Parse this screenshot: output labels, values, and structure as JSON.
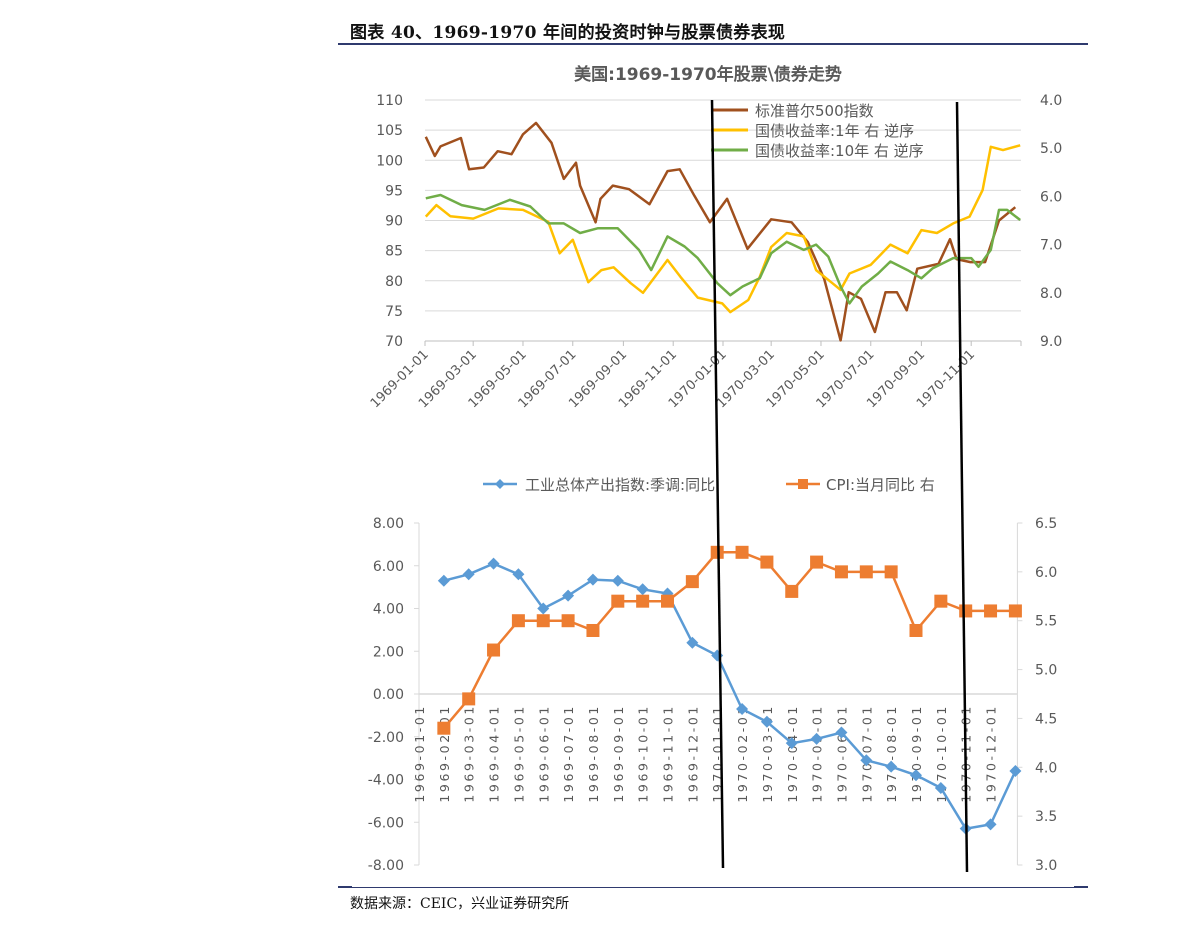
{
  "figure_title": "图表 40、1969-1970 年间的投资时钟与股票债券表现",
  "source": "数据来源：CEIC，兴业证券研究所",
  "chart_data": [
    {
      "type": "line",
      "title": "美国:1969-1970年股票\\债券走势",
      "x_type": "date",
      "xlim": [
        "1969-01-01",
        "1971-01-01"
      ],
      "x_tick_labels": [
        "1969-01-01",
        "1969-03-01",
        "1969-05-01",
        "1969-07-01",
        "1969-09-01",
        "1969-11-01",
        "1970-01-01",
        "1970-03-01",
        "1970-05-01",
        "1970-07-01",
        "1970-09-01",
        "1970-11-01"
      ],
      "ylim_left": [
        70,
        110
      ],
      "y_ticks_left": [
        "110",
        "105",
        "100",
        "95",
        "90",
        "85",
        "80",
        "75",
        "70"
      ],
      "ylim_right": [
        4.0,
        9.0
      ],
      "right_axis_inverted": true,
      "y_ticks_right": [
        "4.0",
        "5.0",
        "6.0",
        "7.0",
        "8.0",
        "9.0"
      ],
      "grid": true,
      "legend": "top-right",
      "series": [
        {
          "name": "标准普尔500指数",
          "axis": "left",
          "color": "#a0501e",
          "points": [
            [
              "1969-01-02",
              103.9
            ],
            [
              "1969-01-13",
              100.7
            ],
            [
              "1969-01-20",
              102.3
            ],
            [
              "1969-02-14",
              103.7
            ],
            [
              "1969-02-24",
              98.5
            ],
            [
              "1969-03-14",
              98.8
            ],
            [
              "1969-03-31",
              101.5
            ],
            [
              "1969-04-17",
              101.0
            ],
            [
              "1969-05-01",
              104.3
            ],
            [
              "1969-05-17",
              106.2
            ],
            [
              "1969-06-05",
              102.9
            ],
            [
              "1969-06-20",
              96.9
            ],
            [
              "1969-07-05",
              99.6
            ],
            [
              "1969-07-10",
              95.8
            ],
            [
              "1969-07-29",
              89.7
            ],
            [
              "1969-08-04",
              93.6
            ],
            [
              "1969-08-19",
              95.8
            ],
            [
              "1969-09-08",
              95.2
            ],
            [
              "1969-10-03",
              92.7
            ],
            [
              "1969-10-25",
              98.2
            ],
            [
              "1969-11-09",
              98.5
            ],
            [
              "1969-11-27",
              94.1
            ],
            [
              "1969-12-16",
              89.7
            ],
            [
              "1970-01-06",
              93.6
            ],
            [
              "1970-01-31",
              85.3
            ],
            [
              "1970-03-01",
              90.2
            ],
            [
              "1970-03-26",
              89.7
            ],
            [
              "1970-04-15",
              86.4
            ],
            [
              "1970-05-05",
              80.3
            ],
            [
              "1970-05-25",
              70.1
            ],
            [
              "1970-06-04",
              78.1
            ],
            [
              "1970-06-19",
              77.0
            ],
            [
              "1970-07-06",
              71.5
            ],
            [
              "1970-07-19",
              78.1
            ],
            [
              "1970-08-02",
              78.1
            ],
            [
              "1970-08-14",
              75.1
            ],
            [
              "1970-08-27",
              82.0
            ],
            [
              "1970-09-22",
              82.8
            ],
            [
              "1970-10-06",
              86.9
            ],
            [
              "1970-10-14",
              83.6
            ],
            [
              "1970-10-31",
              83.1
            ],
            [
              "1970-11-18",
              83.1
            ],
            [
              "1970-12-05",
              90.0
            ],
            [
              "1970-12-25",
              92.2
            ]
          ]
        },
        {
          "name": "国债收益率:1年 右 逆序",
          "axis": "right",
          "color": "#ffc000",
          "points": [
            [
              "1969-01-02",
              6.42
            ],
            [
              "1969-01-15",
              6.18
            ],
            [
              "1969-02-01",
              6.41
            ],
            [
              "1969-03-01",
              6.46
            ],
            [
              "1969-04-01",
              6.25
            ],
            [
              "1969-05-01",
              6.28
            ],
            [
              "1969-06-01",
              6.53
            ],
            [
              "1969-06-15",
              7.18
            ],
            [
              "1969-07-01",
              6.9
            ],
            [
              "1969-07-20",
              7.78
            ],
            [
              "1969-08-05",
              7.53
            ],
            [
              "1969-08-20",
              7.47
            ],
            [
              "1969-09-10",
              7.8
            ],
            [
              "1969-09-25",
              8.0
            ],
            [
              "1969-10-25",
              7.32
            ],
            [
              "1969-11-10",
              7.67
            ],
            [
              "1969-12-01",
              8.1
            ],
            [
              "1969-12-31",
              8.22
            ],
            [
              "1970-01-10",
              8.4
            ],
            [
              "1970-02-01",
              8.15
            ],
            [
              "1970-02-15",
              7.67
            ],
            [
              "1970-03-01",
              7.05
            ],
            [
              "1970-03-20",
              6.76
            ],
            [
              "1970-04-10",
              6.83
            ],
            [
              "1970-04-25",
              7.53
            ],
            [
              "1970-05-15",
              7.8
            ],
            [
              "1970-05-25",
              7.94
            ],
            [
              "1970-06-05",
              7.6
            ],
            [
              "1970-07-01",
              7.42
            ],
            [
              "1970-07-25",
              7.0
            ],
            [
              "1970-08-15",
              7.18
            ],
            [
              "1970-09-01",
              6.7
            ],
            [
              "1970-09-20",
              6.76
            ],
            [
              "1970-10-10",
              6.56
            ],
            [
              "1970-10-30",
              6.42
            ],
            [
              "1970-11-15",
              5.87
            ],
            [
              "1970-11-25",
              4.97
            ],
            [
              "1970-12-10",
              5.04
            ],
            [
              "1970-12-31",
              4.94
            ]
          ]
        },
        {
          "name": "国债收益率:10年 右 逆序",
          "axis": "right",
          "color": "#70ad47",
          "points": [
            [
              "1969-01-02",
              6.04
            ],
            [
              "1969-01-20",
              5.97
            ],
            [
              "1969-02-15",
              6.18
            ],
            [
              "1969-03-15",
              6.28
            ],
            [
              "1969-04-15",
              6.07
            ],
            [
              "1969-05-10",
              6.21
            ],
            [
              "1969-06-01",
              6.56
            ],
            [
              "1969-06-20",
              6.56
            ],
            [
              "1969-07-10",
              6.76
            ],
            [
              "1969-08-01",
              6.66
            ],
            [
              "1969-08-25",
              6.66
            ],
            [
              "1969-09-20",
              7.11
            ],
            [
              "1969-10-05",
              7.53
            ],
            [
              "1969-10-25",
              6.83
            ],
            [
              "1969-11-15",
              7.04
            ],
            [
              "1969-12-01",
              7.28
            ],
            [
              "1969-12-25",
              7.8
            ],
            [
              "1970-01-10",
              8.05
            ],
            [
              "1970-01-25",
              7.87
            ],
            [
              "1970-02-15",
              7.7
            ],
            [
              "1970-03-01",
              7.18
            ],
            [
              "1970-03-20",
              6.94
            ],
            [
              "1970-04-10",
              7.11
            ],
            [
              "1970-04-25",
              7.0
            ],
            [
              "1970-05-10",
              7.25
            ],
            [
              "1970-05-25",
              7.87
            ],
            [
              "1970-06-05",
              8.22
            ],
            [
              "1970-06-20",
              7.87
            ],
            [
              "1970-07-10",
              7.6
            ],
            [
              "1970-07-25",
              7.35
            ],
            [
              "1970-08-15",
              7.53
            ],
            [
              "1970-09-01",
              7.7
            ],
            [
              "1970-09-15",
              7.49
            ],
            [
              "1970-10-10",
              7.28
            ],
            [
              "1970-11-01",
              7.28
            ],
            [
              "1970-11-10",
              7.46
            ],
            [
              "1970-11-25",
              7.11
            ],
            [
              "1970-12-05",
              6.28
            ],
            [
              "1970-12-15",
              6.28
            ],
            [
              "1970-12-31",
              6.49
            ]
          ]
        }
      ]
    },
    {
      "type": "line",
      "categories": [
        "1969-01-01",
        "1969-02-01",
        "1969-03-01",
        "1969-04-01",
        "1969-05-01",
        "1969-06-01",
        "1969-07-01",
        "1969-08-01",
        "1969-09-01",
        "1969-10-01",
        "1969-11-01",
        "1969-12-01",
        "1970-01-01",
        "1970-02-01",
        "1970-03-01",
        "1970-04-01",
        "1970-05-01",
        "1970-06-01",
        "1970-07-01",
        "1970-08-01",
        "1970-09-01",
        "1970-10-01",
        "1970-11-01",
        "1970-12-01",
        ""
      ],
      "ylim_left": [
        -8,
        8
      ],
      "y_ticks_left": [
        "8.00",
        "6.00",
        "4.00",
        "2.00",
        "0.00",
        "-2.00",
        "-4.00",
        "-6.00",
        "-8.00"
      ],
      "ylim_right": [
        3.0,
        6.5
      ],
      "y_ticks_right": [
        "6.5",
        "6.0",
        "5.5",
        "5.0",
        "4.5",
        "4.0",
        "3.5",
        "3.0"
      ],
      "grid": false,
      "legend": "top",
      "series": [
        {
          "name": "工业总体产出指数:季调:同比",
          "axis": "left",
          "color": "#5b9bd5",
          "marker": "diamond",
          "values": [
            null,
            5.3,
            5.6,
            6.1,
            5.6,
            4.0,
            4.6,
            5.35,
            5.3,
            4.9,
            4.7,
            2.4,
            1.8,
            -0.7,
            -1.3,
            -2.3,
            -2.1,
            -1.8,
            -3.1,
            -3.4,
            -3.8,
            -4.4,
            -6.3,
            -6.1,
            -3.6
          ]
        },
        {
          "name": "CPI:当月同比 右",
          "axis": "right",
          "color": "#ed7d31",
          "marker": "square",
          "values": [
            null,
            4.4,
            4.7,
            5.2,
            5.5,
            5.5,
            5.5,
            5.4,
            5.7,
            5.7,
            5.7,
            5.9,
            6.2,
            6.2,
            6.1,
            5.8,
            6.1,
            6.0,
            6.0,
            6.0,
            5.4,
            5.7,
            5.6,
            5.6,
            5.6
          ]
        }
      ]
    }
  ],
  "annotation_color": "#000000"
}
